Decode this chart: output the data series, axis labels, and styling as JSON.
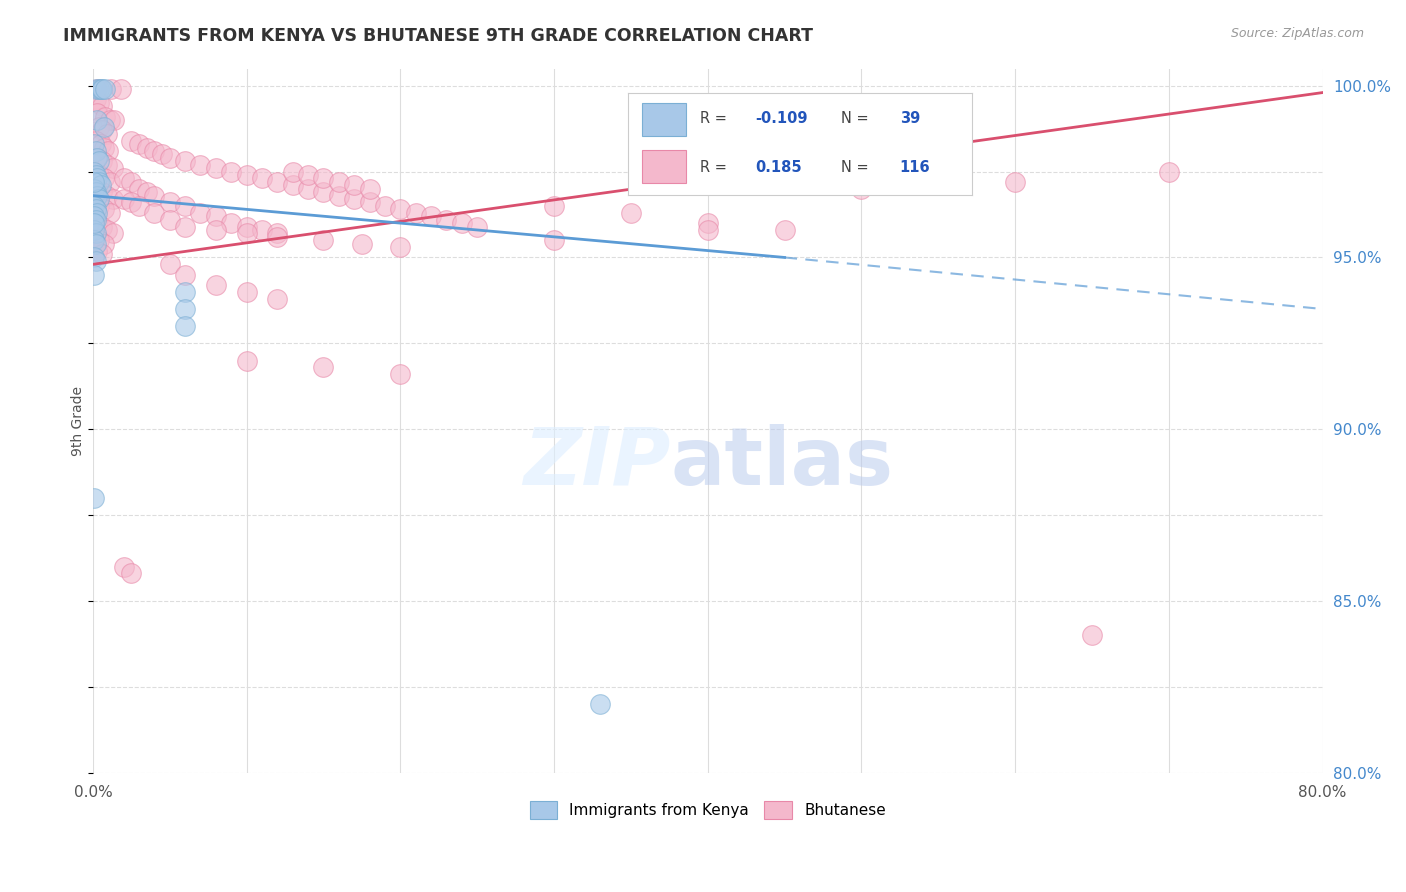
{
  "title": "IMMIGRANTS FROM KENYA VS BHUTANESE 9TH GRADE CORRELATION CHART",
  "source": "Source: ZipAtlas.com",
  "ylabel": "9th Grade",
  "x_min": 0.0,
  "x_max": 0.8,
  "y_min": 0.8,
  "y_max": 1.005,
  "y_ticks": [
    0.8,
    0.85,
    0.9,
    0.95,
    1.0
  ],
  "y_tick_labels": [
    "80.0%",
    "85.0%",
    "90.0%",
    "95.0%",
    "100.0%"
  ],
  "kenya_color": "#a8c8e8",
  "kenya_edge_color": "#7bafd4",
  "bhutan_color": "#f4b8cc",
  "bhutan_edge_color": "#e888a8",
  "kenya_line_color": "#5b9bd5",
  "bhutan_line_color": "#d94f6e",
  "kenya_R": -0.109,
  "kenya_N": 39,
  "bhutan_R": 0.185,
  "bhutan_N": 116,
  "kenya_line_x0": 0.0,
  "kenya_line_y0": 0.968,
  "kenya_line_x1": 0.45,
  "kenya_line_y1": 0.95,
  "kenya_line_dash_x1": 0.8,
  "kenya_line_dash_y1": 0.935,
  "bhutan_line_x0": 0.0,
  "bhutan_line_y0": 0.948,
  "bhutan_line_x1": 0.8,
  "bhutan_line_y1": 0.998,
  "kenya_points": [
    [
      0.002,
      0.999
    ],
    [
      0.004,
      0.999
    ],
    [
      0.005,
      0.999
    ],
    [
      0.006,
      0.999
    ],
    [
      0.008,
      0.999
    ],
    [
      0.003,
      0.99
    ],
    [
      0.007,
      0.988
    ],
    [
      0.001,
      0.983
    ],
    [
      0.002,
      0.981
    ],
    [
      0.003,
      0.979
    ],
    [
      0.004,
      0.978
    ],
    [
      0.001,
      0.975
    ],
    [
      0.002,
      0.974
    ],
    [
      0.003,
      0.973
    ],
    [
      0.004,
      0.972
    ],
    [
      0.005,
      0.971
    ],
    [
      0.001,
      0.97
    ],
    [
      0.002,
      0.969
    ],
    [
      0.003,
      0.968
    ],
    [
      0.004,
      0.967
    ],
    [
      0.001,
      0.965
    ],
    [
      0.002,
      0.964
    ],
    [
      0.003,
      0.963
    ],
    [
      0.001,
      0.962
    ],
    [
      0.002,
      0.961
    ],
    [
      0.001,
      0.958
    ],
    [
      0.002,
      0.957
    ],
    [
      0.001,
      0.955
    ],
    [
      0.002,
      0.954
    ],
    [
      0.001,
      0.95
    ],
    [
      0.002,
      0.949
    ],
    [
      0.001,
      0.945
    ],
    [
      0.06,
      0.94
    ],
    [
      0.06,
      0.935
    ],
    [
      0.06,
      0.93
    ],
    [
      0.001,
      0.88
    ],
    [
      0.33,
      0.82
    ],
    [
      0.001,
      0.972
    ],
    [
      0.001,
      0.96
    ]
  ],
  "bhutan_points": [
    [
      0.003,
      0.999
    ],
    [
      0.012,
      0.999
    ],
    [
      0.018,
      0.999
    ],
    [
      0.002,
      0.996
    ],
    [
      0.004,
      0.995
    ],
    [
      0.006,
      0.994
    ],
    [
      0.003,
      0.992
    ],
    [
      0.008,
      0.991
    ],
    [
      0.011,
      0.99
    ],
    [
      0.014,
      0.99
    ],
    [
      0.004,
      0.988
    ],
    [
      0.006,
      0.987
    ],
    [
      0.009,
      0.986
    ],
    [
      0.002,
      0.984
    ],
    [
      0.005,
      0.983
    ],
    [
      0.007,
      0.982
    ],
    [
      0.01,
      0.981
    ],
    [
      0.003,
      0.979
    ],
    [
      0.006,
      0.978
    ],
    [
      0.009,
      0.977
    ],
    [
      0.013,
      0.976
    ],
    [
      0.004,
      0.974
    ],
    [
      0.007,
      0.973
    ],
    [
      0.011,
      0.972
    ],
    [
      0.003,
      0.97
    ],
    [
      0.006,
      0.969
    ],
    [
      0.009,
      0.968
    ],
    [
      0.013,
      0.967
    ],
    [
      0.004,
      0.965
    ],
    [
      0.007,
      0.964
    ],
    [
      0.011,
      0.963
    ],
    [
      0.003,
      0.96
    ],
    [
      0.006,
      0.959
    ],
    [
      0.009,
      0.958
    ],
    [
      0.013,
      0.957
    ],
    [
      0.004,
      0.955
    ],
    [
      0.007,
      0.954
    ],
    [
      0.003,
      0.952
    ],
    [
      0.006,
      0.951
    ],
    [
      0.02,
      0.973
    ],
    [
      0.025,
      0.972
    ],
    [
      0.03,
      0.97
    ],
    [
      0.035,
      0.969
    ],
    [
      0.04,
      0.968
    ],
    [
      0.05,
      0.966
    ],
    [
      0.06,
      0.965
    ],
    [
      0.07,
      0.963
    ],
    [
      0.08,
      0.962
    ],
    [
      0.09,
      0.96
    ],
    [
      0.1,
      0.959
    ],
    [
      0.11,
      0.958
    ],
    [
      0.12,
      0.957
    ],
    [
      0.02,
      0.967
    ],
    [
      0.025,
      0.966
    ],
    [
      0.03,
      0.965
    ],
    [
      0.04,
      0.963
    ],
    [
      0.05,
      0.961
    ],
    [
      0.06,
      0.959
    ],
    [
      0.08,
      0.958
    ],
    [
      0.1,
      0.957
    ],
    [
      0.12,
      0.956
    ],
    [
      0.15,
      0.955
    ],
    [
      0.175,
      0.954
    ],
    [
      0.2,
      0.953
    ],
    [
      0.025,
      0.984
    ],
    [
      0.03,
      0.983
    ],
    [
      0.035,
      0.982
    ],
    [
      0.04,
      0.981
    ],
    [
      0.045,
      0.98
    ],
    [
      0.05,
      0.979
    ],
    [
      0.06,
      0.978
    ],
    [
      0.07,
      0.977
    ],
    [
      0.08,
      0.976
    ],
    [
      0.09,
      0.975
    ],
    [
      0.1,
      0.974
    ],
    [
      0.11,
      0.973
    ],
    [
      0.12,
      0.972
    ],
    [
      0.13,
      0.971
    ],
    [
      0.14,
      0.97
    ],
    [
      0.15,
      0.969
    ],
    [
      0.16,
      0.968
    ],
    [
      0.17,
      0.967
    ],
    [
      0.18,
      0.966
    ],
    [
      0.19,
      0.965
    ],
    [
      0.2,
      0.964
    ],
    [
      0.21,
      0.963
    ],
    [
      0.22,
      0.962
    ],
    [
      0.23,
      0.961
    ],
    [
      0.24,
      0.96
    ],
    [
      0.25,
      0.959
    ],
    [
      0.13,
      0.975
    ],
    [
      0.14,
      0.974
    ],
    [
      0.15,
      0.973
    ],
    [
      0.16,
      0.972
    ],
    [
      0.17,
      0.971
    ],
    [
      0.18,
      0.97
    ],
    [
      0.3,
      0.965
    ],
    [
      0.35,
      0.963
    ],
    [
      0.4,
      0.96
    ],
    [
      0.45,
      0.958
    ],
    [
      0.5,
      0.97
    ],
    [
      0.6,
      0.972
    ],
    [
      0.7,
      0.975
    ],
    [
      0.05,
      0.948
    ],
    [
      0.06,
      0.945
    ],
    [
      0.08,
      0.942
    ],
    [
      0.1,
      0.94
    ],
    [
      0.12,
      0.938
    ],
    [
      0.02,
      0.86
    ],
    [
      0.025,
      0.858
    ],
    [
      0.65,
      0.84
    ],
    [
      0.1,
      0.92
    ],
    [
      0.15,
      0.918
    ],
    [
      0.2,
      0.916
    ],
    [
      0.3,
      0.955
    ],
    [
      0.4,
      0.958
    ]
  ]
}
